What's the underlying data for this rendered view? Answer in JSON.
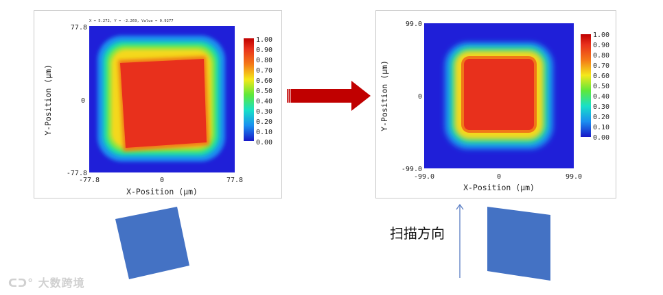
{
  "left_plot": {
    "readout": "X = 5.272, Y = -2.269, Value = 0.9277",
    "x_ticks": [
      "-77.8",
      "0",
      "77.8"
    ],
    "y_ticks": [
      "77.8",
      "0",
      "-77.8"
    ],
    "x_label": "X-Position (µm)",
    "y_label": "Y-Position (µm)",
    "colorbar_ticks": [
      "1.00",
      "0.90",
      "0.80",
      "0.70",
      "0.60",
      "0.50",
      "0.40",
      "0.30",
      "0.20",
      "0.10",
      "0.00"
    ]
  },
  "right_plot": {
    "x_ticks": [
      "-99.0",
      "0",
      "99.0"
    ],
    "y_ticks": [
      "99.0",
      "0",
      "-99.0"
    ],
    "x_label": "X-Position (µm)",
    "y_label": "Y-Position (µm)",
    "colorbar_ticks": [
      "1.00",
      "0.90",
      "0.80",
      "0.70",
      "0.60",
      "0.50",
      "0.40",
      "0.30",
      "0.20",
      "0.10",
      "0.00"
    ]
  },
  "scan_direction_label": "扫描方向",
  "watermark": "大数跨境",
  "colors": {
    "arrow": "#c00000",
    "shape_fill": "#4472c4",
    "scan_arrow": "#5b7ec4",
    "map_background": "#1f1fd8",
    "map_hot": "#e8301c"
  }
}
